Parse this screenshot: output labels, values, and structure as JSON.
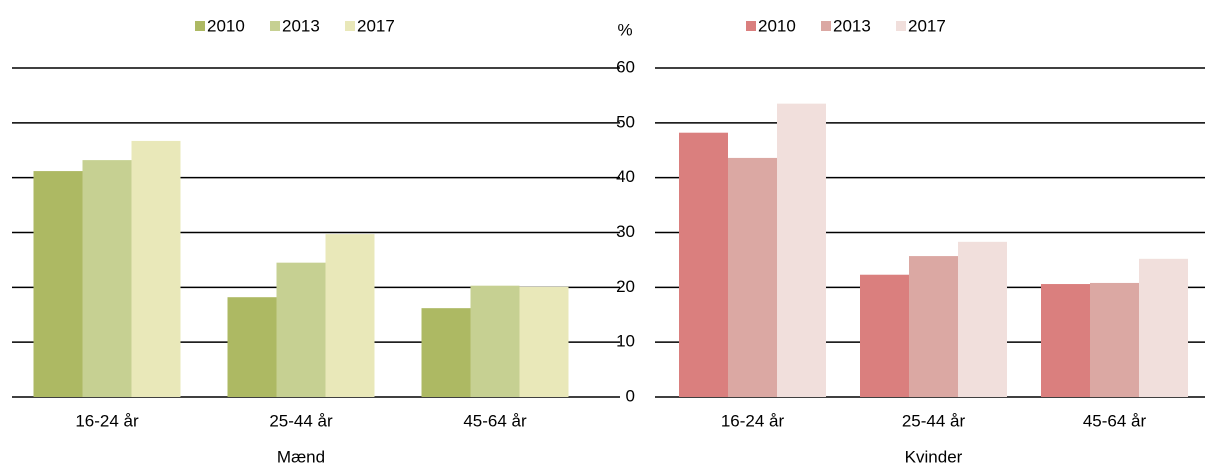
{
  "chart_data": [
    {
      "type": "bar",
      "xlabel": "Mænd",
      "categories": [
        "16-24 år",
        "25-44 år",
        "45-64 år"
      ],
      "series": [
        {
          "name": "2010",
          "color": "#adb963",
          "values": [
            41.2,
            18.2,
            16.2
          ]
        },
        {
          "name": "2013",
          "color": "#c6d092",
          "values": [
            43.2,
            24.5,
            20.3
          ]
        },
        {
          "name": "2017",
          "color": "#e9e8b9",
          "values": [
            46.7,
            29.7,
            20.1
          ]
        }
      ],
      "ylim": [
        0,
        60
      ],
      "yticks": [
        0,
        10,
        20,
        30,
        40,
        50,
        60
      ],
      "ytick_labels": false,
      "grid": true
    },
    {
      "type": "bar",
      "xlabel": "Kvinder",
      "ylabel": "%",
      "categories": [
        "16-24 år",
        "25-44 år",
        "45-64 år"
      ],
      "series": [
        {
          "name": "2010",
          "color": "#da7f7e",
          "values": [
            48.2,
            22.3,
            20.6
          ]
        },
        {
          "name": "2013",
          "color": "#dba8a3",
          "values": [
            43.6,
            25.7,
            20.8
          ]
        },
        {
          "name": "2017",
          "color": "#f1dfdc",
          "values": [
            53.5,
            28.3,
            25.2
          ]
        }
      ],
      "ylim": [
        0,
        60
      ],
      "yticks": [
        0,
        10,
        20,
        30,
        40,
        50,
        60
      ],
      "ytick_labels": true,
      "grid": true
    }
  ]
}
